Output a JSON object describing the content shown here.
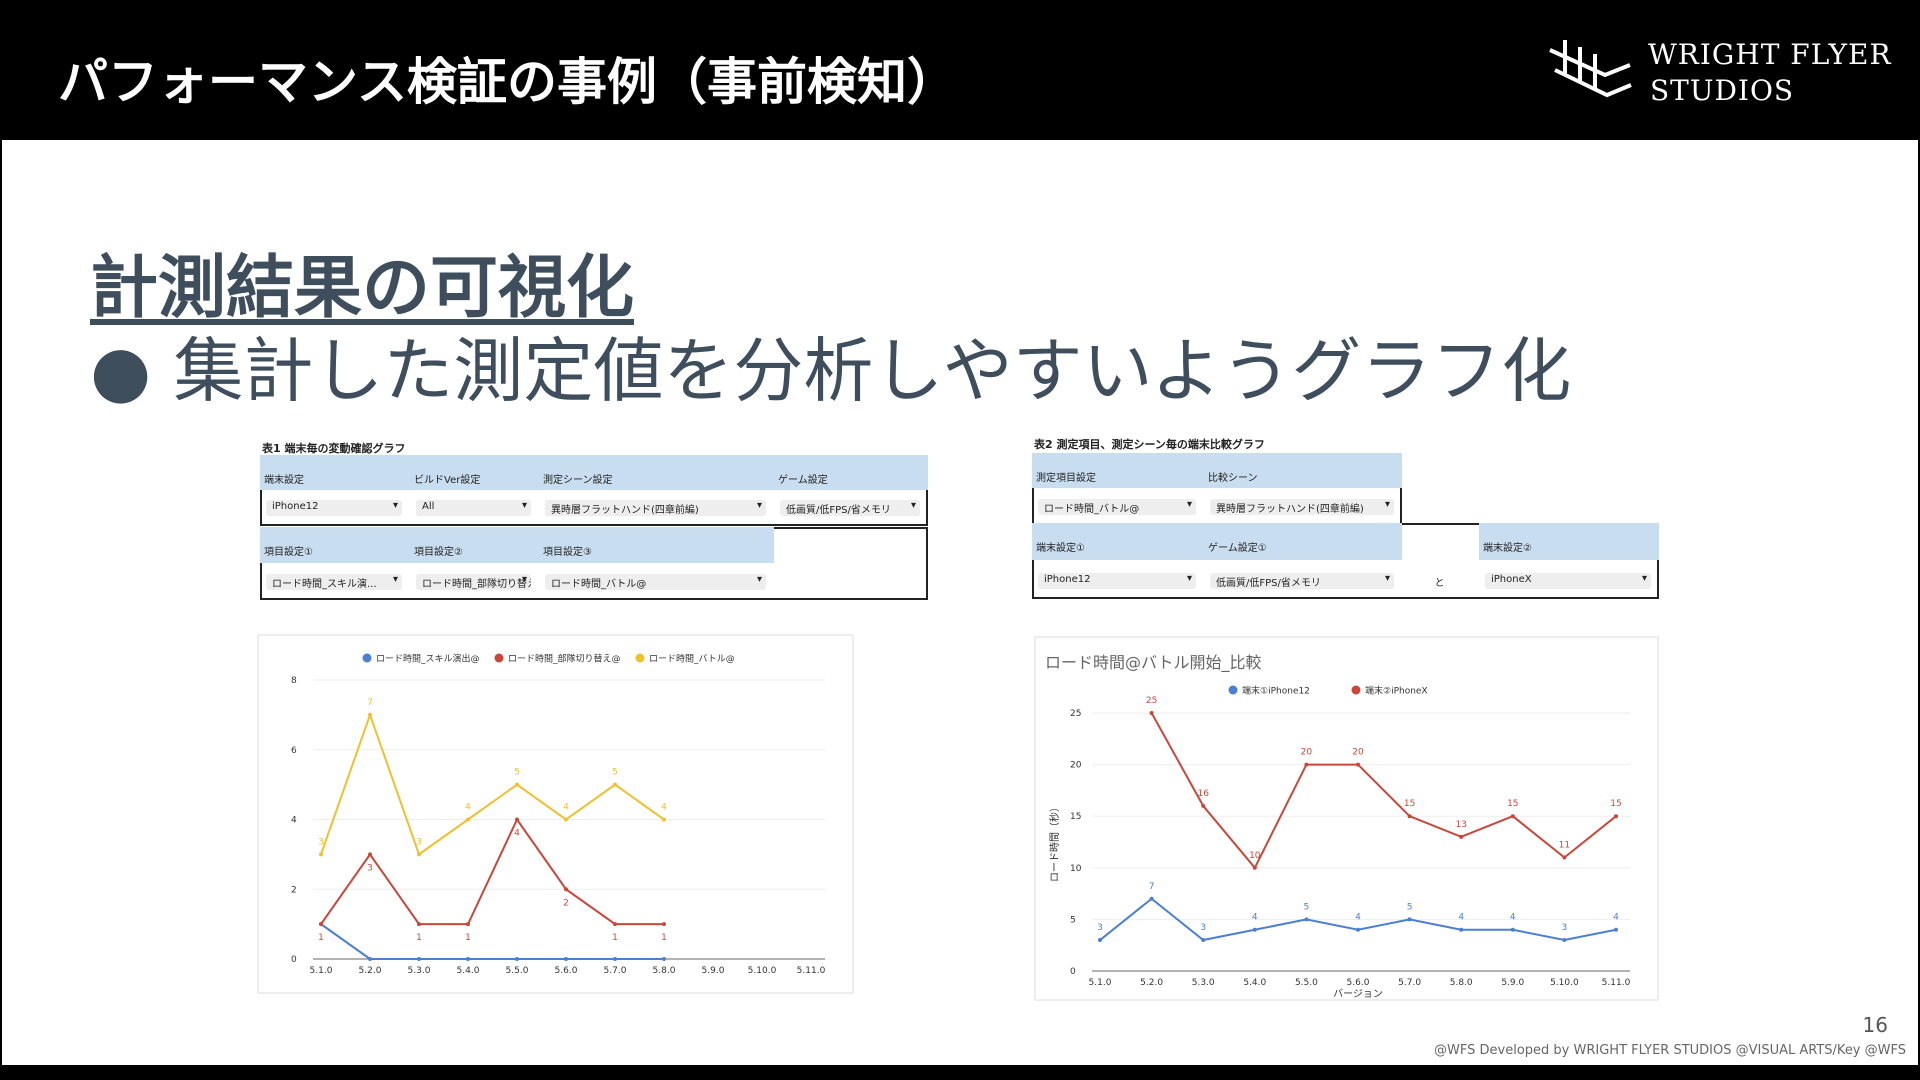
{
  "header": {
    "title": "パフォーマンス検証の事例（事前検知）",
    "logo": [
      "WRIGHT FLYER",
      "STUDIOS"
    ]
  },
  "heading": "計測結果の可視化",
  "bullet": "集計した測定値を分析しやすいようグラフ化",
  "page_number": "16",
  "footer": "@WFS Developed by WRIGHT FLYER STUDIOS @VISUAL ARTS/Key @WFS",
  "panels": [
    {
      "caption": "表1 端末毎の変動確認グラフ",
      "fields": [
        {
          "label": "端末設定",
          "value": "iPhone12"
        },
        {
          "label": "ビルドVer設定",
          "value": "All"
        },
        {
          "label": "測定シーン設定",
          "value": "異時層フラットハンド(四章前編)"
        },
        {
          "label": "ゲーム設定",
          "value": "低画質/低FPS/省メモリ"
        },
        {
          "label": "項目設定①",
          "value": "ロード時間_スキル演..."
        },
        {
          "label": "項目設定②",
          "value": "ロード時間_部隊切り替え@"
        },
        {
          "label": "項目設定③",
          "value": "ロード時間_バトル@"
        }
      ]
    },
    {
      "caption": "表2 測定項目、測定シーン毎の端末比較グラフ",
      "fields": [
        {
          "label": "測定項目設定",
          "value": "ロード時間_バトル@"
        },
        {
          "label": "比較シーン",
          "value": "異時層フラットハンド(四章前編)"
        },
        {
          "label": "端末設定①",
          "value": "iPhone12"
        },
        {
          "label": "ゲーム設定①",
          "value": "低画質/低FPS/省メモリ"
        },
        {
          "value": "と"
        },
        {
          "label": "端末設定②",
          "value": "iPhoneX"
        }
      ]
    }
  ],
  "chart_data": [
    {
      "type": "line",
      "categories": [
        "5.1.0",
        "5.2.0",
        "5.3.0",
        "5.4.0",
        "5.5.0",
        "5.6.0",
        "5.7.0",
        "5.8.0",
        "5.9.0",
        "5.10.0",
        "5.11.0"
      ],
      "series": [
        {
          "name": "ロード時間_スキル演出@",
          "color": "#4a7fd4",
          "values": [
            1,
            0,
            0,
            0,
            0,
            0,
            0,
            0,
            null,
            null,
            null
          ]
        },
        {
          "name": "ロード時間_部隊切り替え@",
          "color": "#c9473a",
          "values": [
            1,
            3,
            1,
            1,
            4,
            2,
            1,
            1,
            null,
            null,
            null
          ]
        },
        {
          "name": "ロード時間_バトル@",
          "color": "#f0c02e",
          "values": [
            3,
            7,
            3,
            4,
            5,
            4,
            5,
            4,
            null,
            null,
            null
          ]
        }
      ],
      "ylim": [
        0,
        8
      ],
      "yticks": [
        0,
        2,
        4,
        6,
        8
      ],
      "legend": "top",
      "grid": true
    },
    {
      "type": "line",
      "title": "ロード時間@バトル開始_比較",
      "x_label": "バージョン",
      "y_label": "ロード時間（秒）",
      "categories": [
        "5.1.0",
        "5.2.0",
        "5.3.0",
        "5.4.0",
        "5.5.0",
        "5.6.0",
        "5.7.0",
        "5.8.0",
        "5.9.0",
        "5.10.0",
        "5.11.0"
      ],
      "series": [
        {
          "name": "端末①iPhone12",
          "color": "#4a7fd4",
          "values": [
            3,
            7,
            3,
            4,
            5,
            4,
            5,
            4,
            4,
            3,
            4
          ]
        },
        {
          "name": "端末②iPhoneX",
          "color": "#c9473a",
          "values": [
            null,
            25,
            16,
            10,
            20,
            20,
            15,
            13,
            15,
            11,
            15
          ]
        }
      ],
      "ylim": [
        0,
        25
      ],
      "yticks": [
        0,
        5,
        10,
        15,
        20,
        25
      ],
      "legend": "top",
      "grid": true
    }
  ]
}
